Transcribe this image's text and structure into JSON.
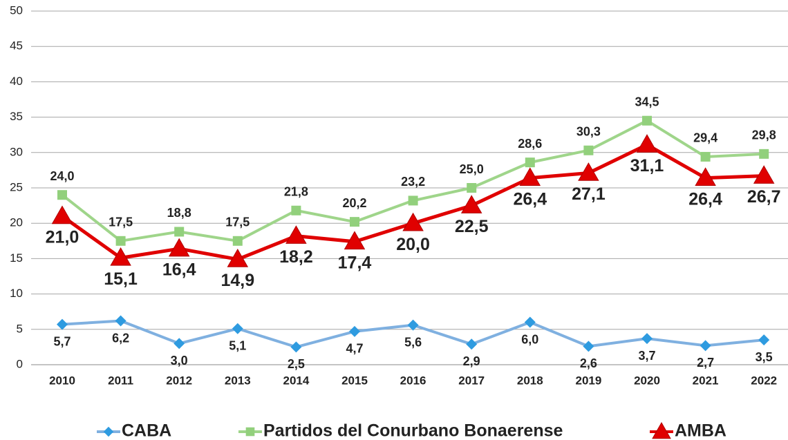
{
  "chart_data": {
    "type": "line",
    "categories": [
      "2010",
      "2011",
      "2012",
      "2013",
      "2014",
      "2015",
      "2016",
      "2017",
      "2018",
      "2019",
      "2020",
      "2021",
      "2022"
    ],
    "series": [
      {
        "name": "CABA",
        "color": "#7fb0e0",
        "marker_color": "#2e9be0",
        "marker": "diamond",
        "values": [
          5.7,
          6.2,
          3.0,
          5.1,
          2.5,
          4.7,
          5.6,
          2.9,
          6.0,
          2.6,
          3.7,
          2.7,
          3.5
        ],
        "value_labels": [
          "5,7",
          "6,2",
          "3,0",
          "5,1",
          "2,5",
          "4,7",
          "5,6",
          "2,9",
          "6,0",
          "2,6",
          "3,7",
          "2,7",
          "3,5"
        ]
      },
      {
        "name": "Partidos del Conurbano Bonaerense",
        "color": "#9fd58a",
        "marker_color": "#92d07c",
        "marker": "square",
        "values": [
          24.0,
          17.5,
          18.8,
          17.5,
          21.8,
          20.2,
          23.2,
          25.0,
          28.6,
          30.3,
          34.5,
          29.4,
          29.8
        ],
        "value_labels": [
          "24,0",
          "17,5",
          "18,8",
          "17,5",
          "21,8",
          "20,2",
          "23,2",
          "25,0",
          "28,6",
          "30,3",
          "34,5",
          "29,4",
          "29,8"
        ]
      },
      {
        "name": "AMBA",
        "color": "#e00000",
        "marker_color": "#e00000",
        "marker": "triangle",
        "values": [
          21.0,
          15.1,
          16.4,
          14.9,
          18.2,
          17.4,
          20.0,
          22.5,
          26.4,
          27.1,
          31.1,
          26.4,
          26.7
        ],
        "value_labels": [
          "21,0",
          "15,1",
          "16,4",
          "14,9",
          "18,2",
          "17,4",
          "20,0",
          "22,5",
          "26,4",
          "27,1",
          "31,1",
          "26,4",
          "26,7"
        ]
      }
    ],
    "ylim": [
      0,
      50
    ],
    "yticks": [
      0,
      5,
      10,
      15,
      20,
      25,
      30,
      35,
      40,
      45,
      50
    ],
    "grid": true,
    "legend": "bottom"
  }
}
